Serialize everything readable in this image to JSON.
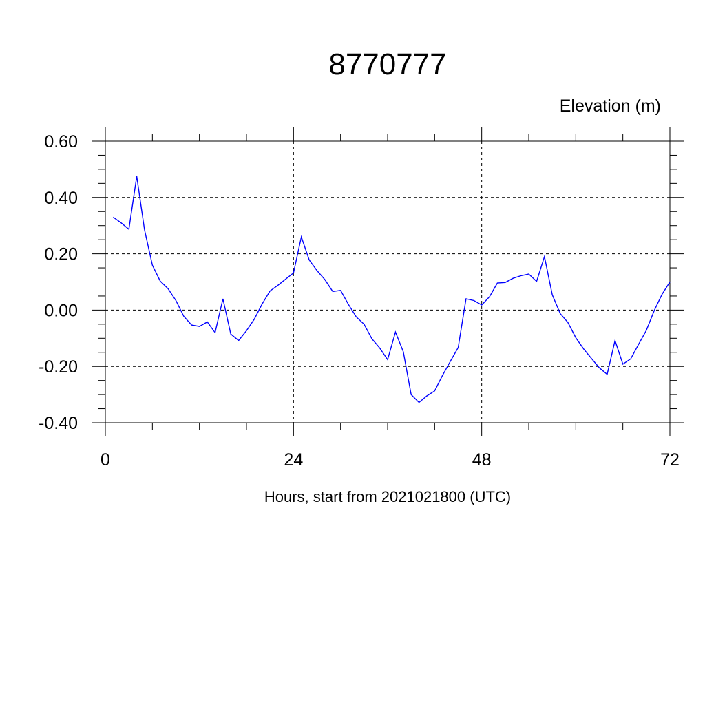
{
  "chart_data": {
    "type": "line",
    "title": "8770777",
    "subtitle": "Elevation (m)",
    "xlabel": "Hours, start from 2021021800 (UTC)",
    "ylabel": "",
    "xlim": [
      0,
      72
    ],
    "ylim": [
      -0.4,
      0.6
    ],
    "x_ticks": [
      0,
      24,
      48,
      72
    ],
    "x_tick_labels": [
      "0",
      "24",
      "48",
      "72"
    ],
    "y_ticks": [
      -0.4,
      -0.2,
      0.0,
      0.2,
      0.4,
      0.6
    ],
    "y_tick_labels": [
      "-0.40",
      "-0.20",
      "0.00",
      "0.20",
      "0.40",
      "0.60"
    ],
    "grid": true,
    "series": [
      {
        "color": "#0000ff",
        "x": [
          1,
          2,
          3,
          4,
          5,
          6,
          7,
          8,
          9,
          10,
          11,
          12,
          13,
          14,
          15,
          16,
          17,
          18,
          19,
          20,
          21,
          22,
          23,
          24,
          25,
          26,
          27,
          28,
          29,
          30,
          31,
          32,
          33,
          34,
          35,
          36,
          37,
          38,
          39,
          40,
          41,
          42,
          43,
          44,
          45,
          46,
          47,
          48,
          49,
          50,
          51,
          52,
          53,
          54,
          55,
          56,
          57,
          58,
          59,
          60,
          61,
          62,
          63,
          64,
          65,
          66,
          67,
          68,
          69,
          70,
          71,
          72
        ],
        "values": [
          0.33,
          0.31,
          0.287,
          0.475,
          0.285,
          0.16,
          0.103,
          0.076,
          0.034,
          -0.022,
          -0.053,
          -0.058,
          -0.042,
          -0.08,
          0.04,
          -0.085,
          -0.108,
          -0.073,
          -0.032,
          0.022,
          0.068,
          0.088,
          0.11,
          0.132,
          0.26,
          0.178,
          0.14,
          0.108,
          0.066,
          0.07,
          0.02,
          -0.024,
          -0.05,
          -0.102,
          -0.135,
          -0.176,
          -0.078,
          -0.148,
          -0.3,
          -0.328,
          -0.305,
          -0.287,
          -0.232,
          -0.182,
          -0.133,
          0.04,
          0.034,
          0.018,
          0.048,
          0.096,
          0.098,
          0.113,
          0.122,
          0.128,
          0.102,
          0.19,
          0.054,
          -0.012,
          -0.044,
          -0.098,
          -0.138,
          -0.172,
          -0.205,
          -0.228,
          -0.108,
          -0.192,
          -0.173,
          -0.122,
          -0.072,
          -0.002,
          0.056,
          0.1
        ]
      }
    ]
  }
}
